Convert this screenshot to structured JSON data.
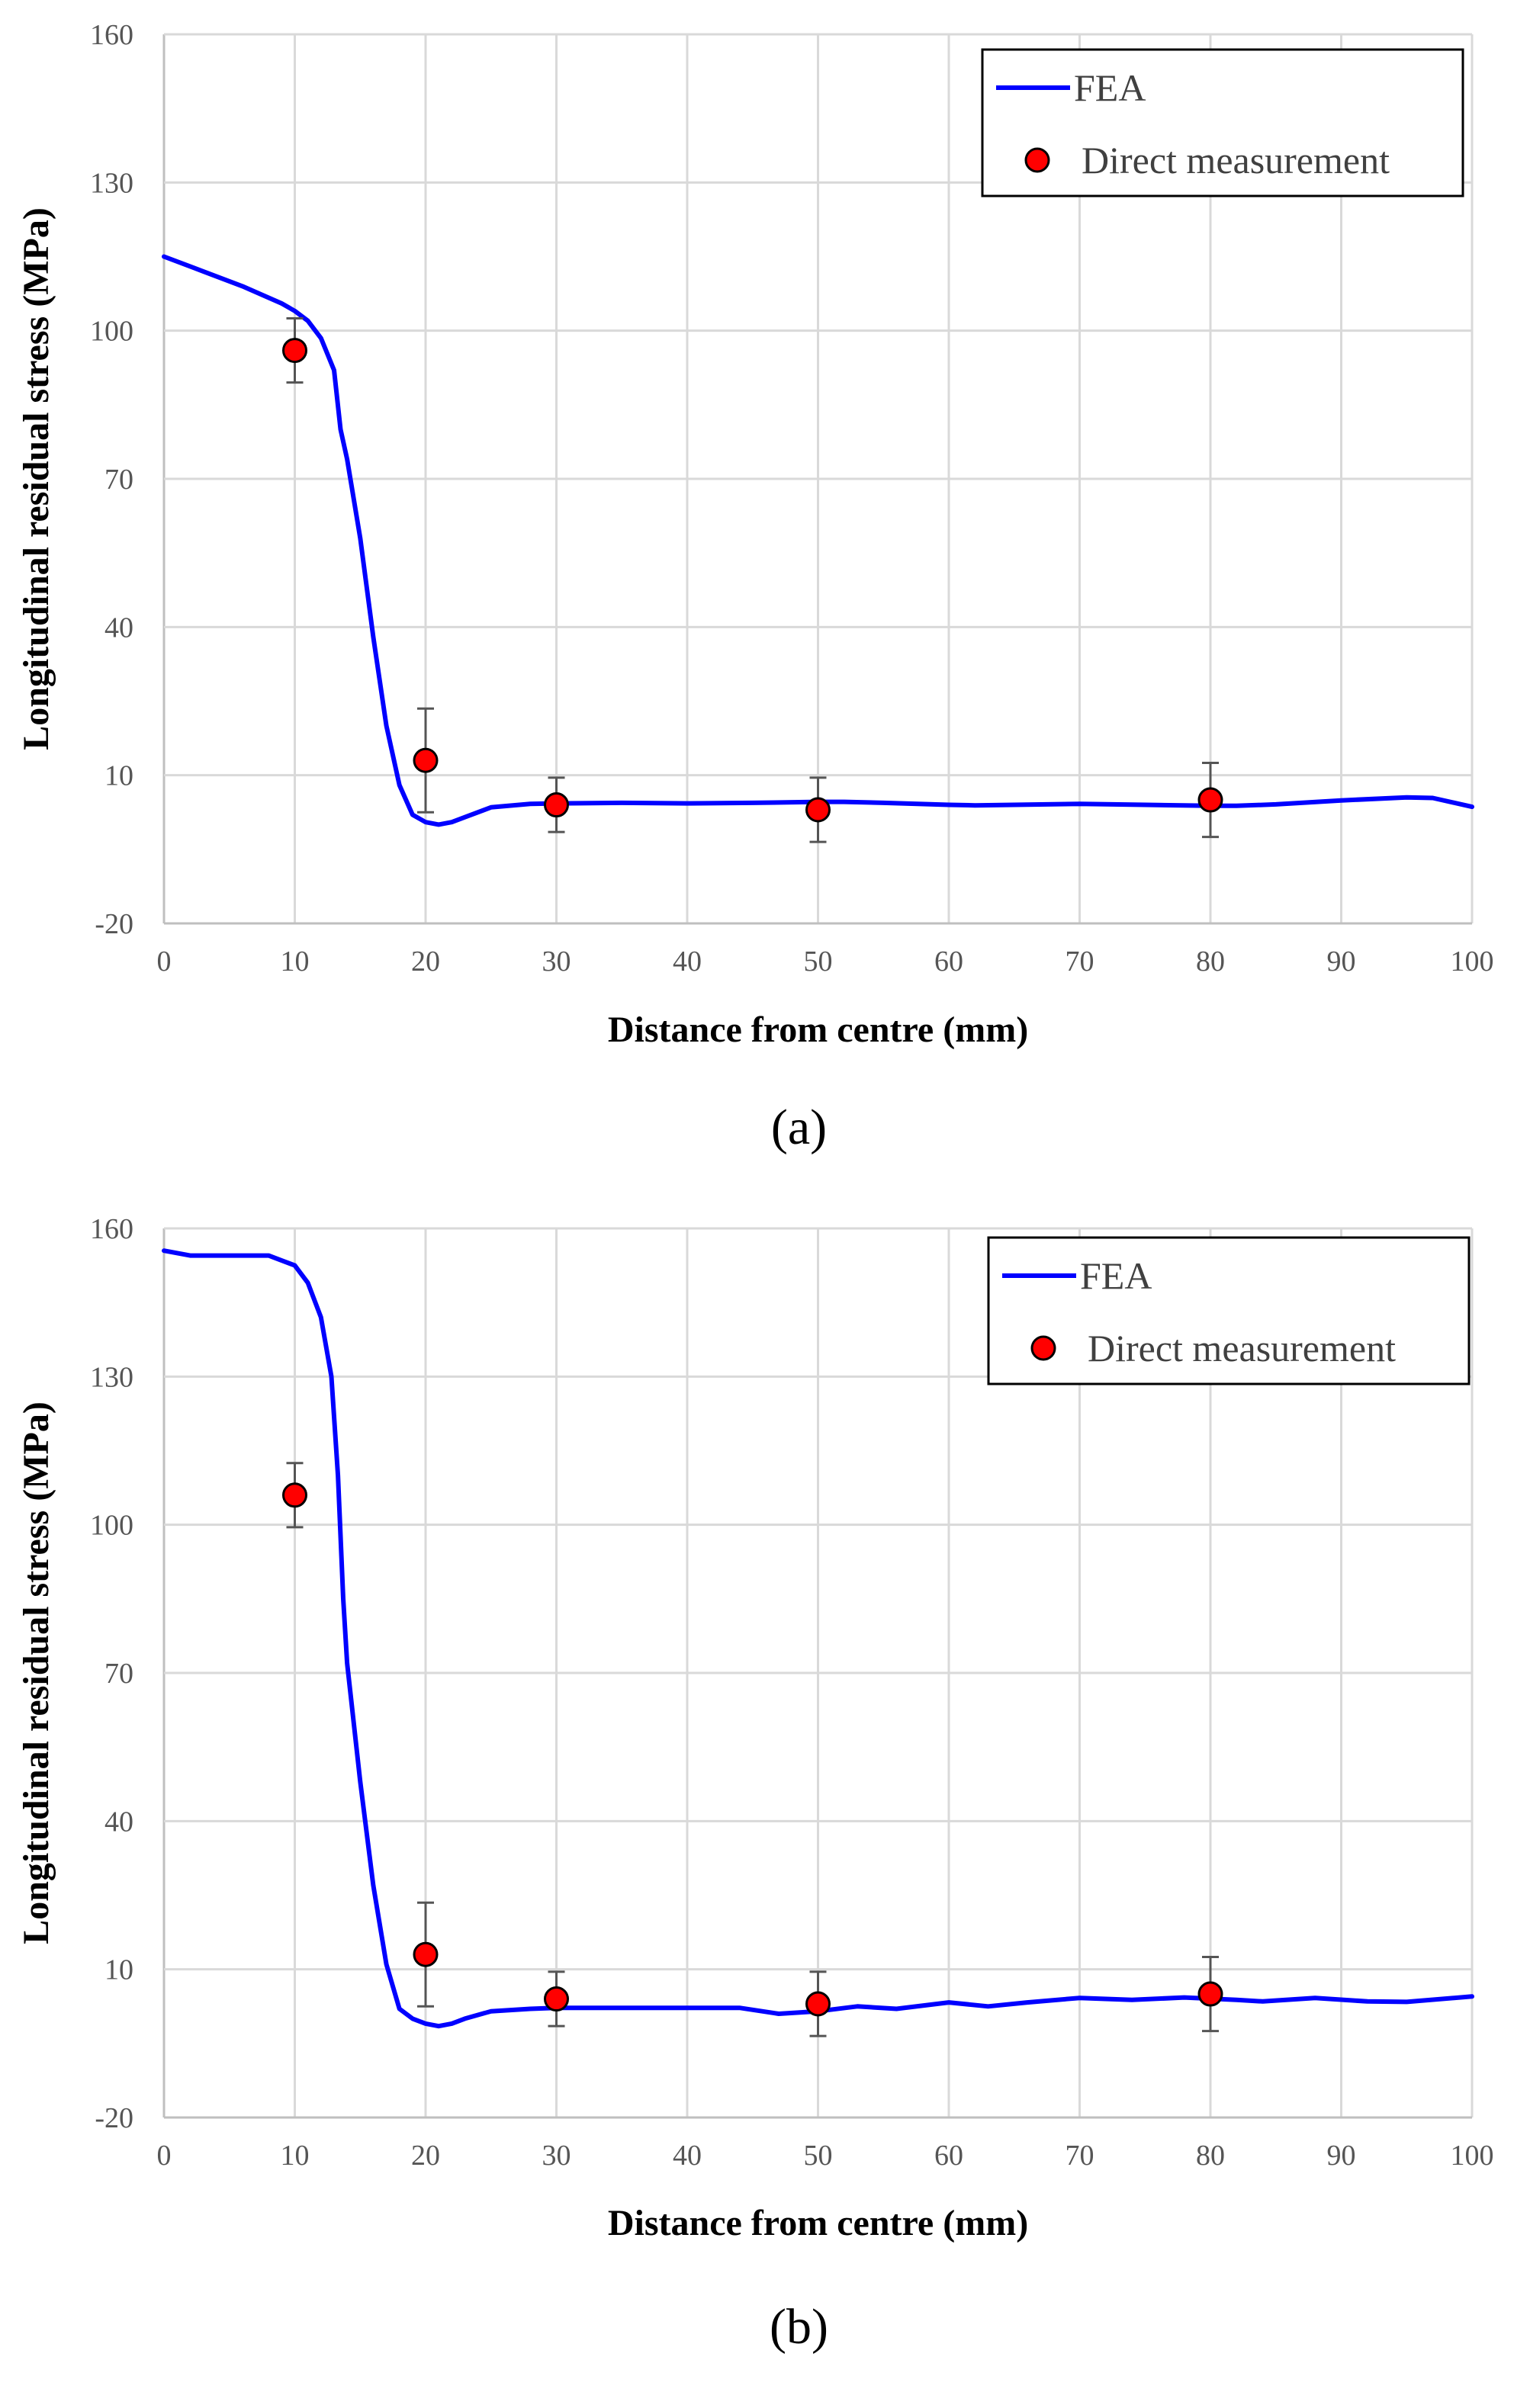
{
  "chart_data": [
    {
      "type": "line",
      "panel_label": "(a)",
      "xlabel": "Distance from centre (mm)",
      "ylabel": "Longitudinal residual stress (MPa)",
      "xlim": [
        0,
        100
      ],
      "ylim": [
        -20,
        160
      ],
      "x_ticks": [
        "0",
        "10",
        "20",
        "30",
        "40",
        "50",
        "60",
        "70",
        "80",
        "90",
        "100"
      ],
      "y_ticks": [
        "160",
        "130",
        "100",
        "70",
        "40",
        "10",
        "-20"
      ],
      "legend_position": "top-right",
      "series": [
        {
          "name": "FEA",
          "kind": "line",
          "color": "#0000ff",
          "x": [
            0,
            3,
            6,
            9,
            10,
            11,
            12,
            13,
            13.5,
            14,
            15,
            16,
            17,
            18,
            19,
            20,
            21,
            22,
            23,
            25,
            28,
            30,
            35,
            40,
            45,
            50,
            52,
            55,
            60,
            62,
            65,
            70,
            75,
            80,
            82,
            85,
            90,
            95,
            97,
            100
          ],
          "y": [
            115,
            112,
            109,
            105.5,
            104,
            102,
            98.5,
            92,
            80,
            74,
            58,
            38,
            20,
            8,
            2,
            0.5,
            0,
            0.5,
            1.5,
            3.5,
            4.2,
            4.3,
            4.4,
            4.3,
            4.4,
            4.6,
            4.6,
            4.4,
            4.0,
            3.9,
            4.0,
            4.2,
            4.0,
            3.8,
            3.8,
            4.1,
            4.9,
            5.5,
            5.4,
            3.6
          ]
        },
        {
          "name": "Direct measurement",
          "kind": "scatter",
          "color": "#ff0000",
          "x": [
            10,
            20,
            30,
            50,
            80
          ],
          "y": [
            96,
            13,
            4,
            3,
            5
          ],
          "error": [
            6.5,
            10.5,
            5.5,
            6.5,
            7.5
          ]
        }
      ]
    },
    {
      "type": "line",
      "panel_label": "(b)",
      "xlabel": "Distance from centre (mm)",
      "ylabel": "Longitudinal residual stress (MPa)",
      "xlim": [
        0,
        100
      ],
      "ylim": [
        -20,
        160
      ],
      "x_ticks": [
        "0",
        "10",
        "20",
        "30",
        "40",
        "50",
        "60",
        "70",
        "80",
        "90",
        "100"
      ],
      "y_ticks": [
        "160",
        "130",
        "100",
        "70",
        "40",
        "10",
        "-20"
      ],
      "legend_position": "top-right",
      "series": [
        {
          "name": "FEA",
          "kind": "line",
          "color": "#0000ff",
          "x": [
            0,
            2,
            5,
            8,
            10,
            11,
            12,
            12.8,
            13.3,
            13.7,
            14,
            15,
            16,
            17,
            18,
            19,
            20,
            21,
            22,
            23,
            25,
            28,
            30,
            35,
            40,
            44,
            47,
            50,
            53,
            56,
            60,
            63,
            66,
            70,
            74,
            78,
            82,
            84,
            88,
            92,
            95,
            100
          ],
          "y": [
            155.5,
            154.5,
            154.5,
            154.5,
            152.5,
            149,
            142,
            130,
            110,
            85,
            72,
            48,
            27,
            11,
            2,
            0,
            -1,
            -1.5,
            -1,
            0,
            1.5,
            2,
            2.2,
            2.2,
            2.2,
            2.2,
            1,
            1.5,
            2.5,
            2,
            3.3,
            2.5,
            3.3,
            4.2,
            3.8,
            4.3,
            3.8,
            3.5,
            4.2,
            3.5,
            3.4,
            4.5
          ]
        },
        {
          "name": "Direct measurement",
          "kind": "scatter",
          "color": "#ff0000",
          "x": [
            10,
            20,
            30,
            50,
            80
          ],
          "y": [
            106,
            13,
            4,
            3,
            5
          ],
          "error": [
            6.5,
            10.5,
            5.5,
            6.5,
            7.5
          ]
        }
      ]
    }
  ]
}
